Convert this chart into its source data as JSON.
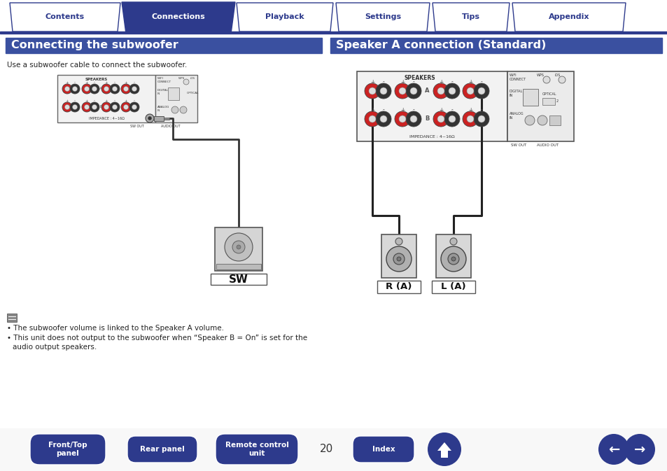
{
  "bg_color": "#ffffff",
  "tab_bar_color": "#2d3a8c",
  "tab_bg_inactive": "#ffffff",
  "tab_bg_active": "#2d3a8c",
  "tab_text_inactive": "#2d3a8c",
  "tab_text_active": "#ffffff",
  "tabs": [
    "Contents",
    "Connections",
    "Playback",
    "Settings",
    "Tips",
    "Appendix"
  ],
  "active_tab": 1,
  "section_header_color": "#3a50a0",
  "section_header_text_color": "#ffffff",
  "section1_title": "Connecting the subwoofer",
  "section2_title": "Speaker A connection (Standard)",
  "section1_desc": "Use a subwoofer cable to connect the subwoofer.",
  "note_bullet1": "The subwoofer volume is linked to the Speaker A volume.",
  "note_bullet2": "This unit does not output to the subwoofer when “Speaker B = On” is set for the\naudio output speakers.",
  "page_num": "20",
  "nav_button_color": "#2d3a8c",
  "red_color": "#cc2222",
  "dark_color": "#222222",
  "gray_color": "#888888"
}
